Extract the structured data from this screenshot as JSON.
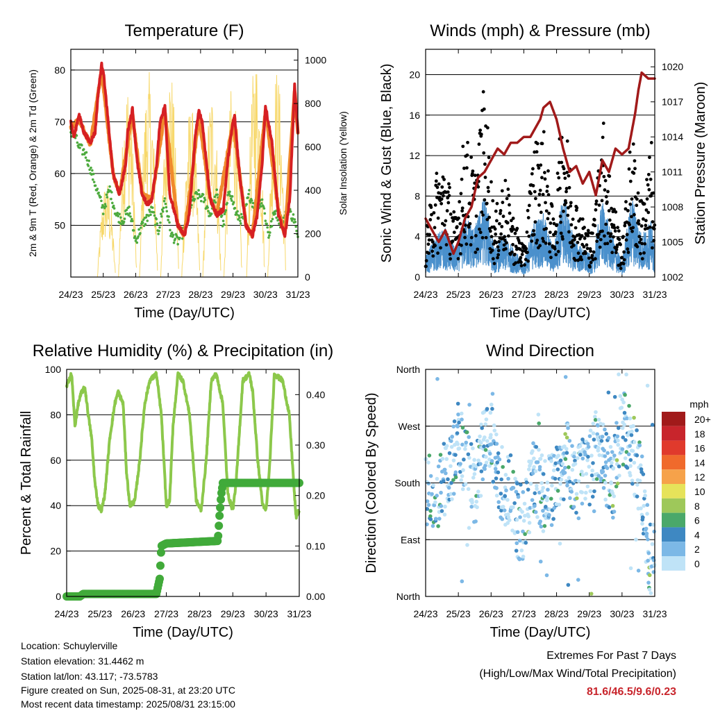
{
  "x_ticks": [
    "24/23",
    "25/23",
    "26/23",
    "27/23",
    "28/23",
    "29/23",
    "30/23",
    "31/23"
  ],
  "chart_data": [
    {
      "type": "line",
      "title": "Temperature (F)",
      "xlabel": "Time (Day/UTC)",
      "ylabel": "2m & 9m T (Red, Orange) & 2m Td (Green)",
      "ylabel_right": "Solar Insolation (Yellow)",
      "ylim": [
        40,
        84
      ],
      "yticks": [
        50,
        60,
        70,
        80
      ],
      "ylim_right": [
        0,
        1050
      ],
      "yticks_right": [
        0,
        200,
        400,
        600,
        800,
        1000
      ],
      "gridlines": [
        50,
        60,
        70,
        80
      ],
      "colors": {
        "temp_2m": "#d62023",
        "temp_9m": "#f08a2c",
        "dewpoint": "#4daa3e",
        "solar": "#f7d86b"
      },
      "series": [
        {
          "key": "temp_2m",
          "days": [
            0,
            0.1,
            0.25,
            0.4,
            0.6,
            0.75,
            0.85,
            0.95,
            1,
            1.15,
            1.3,
            1.5,
            1.7,
            1.75,
            1.9,
            2.05,
            2.2,
            2.35,
            2.5,
            2.65,
            2.75,
            2.9,
            3.05,
            3.3,
            3.5,
            3.65,
            3.75,
            3.85,
            3.95,
            4.05,
            4.3,
            4.5,
            4.7,
            4.85,
            5,
            5.05,
            5.2,
            5.4,
            5.6,
            5.75,
            5.9,
            6,
            6.2,
            6.4,
            6.6,
            6.75,
            6.9,
            7
          ],
          "values": [
            70,
            67,
            71.5,
            68,
            66,
            68,
            76,
            81,
            80,
            70,
            60,
            56,
            62,
            68,
            72.5,
            62,
            56,
            54,
            55,
            62,
            70,
            73,
            56,
            50,
            48,
            52,
            60,
            68,
            72,
            70,
            55,
            52,
            53,
            63,
            70,
            71,
            60,
            50,
            48,
            52,
            62,
            73,
            66,
            52,
            48,
            55,
            77,
            68
          ]
        },
        {
          "key": "temp_9m",
          "days": [
            0,
            0.25,
            0.6,
            0.95,
            1.3,
            1.5,
            1.9,
            2.2,
            2.5,
            2.9,
            3.3,
            3.5,
            3.95,
            4.3,
            4.5,
            5,
            5.4,
            5.6,
            6,
            6.4,
            6.6,
            6.9,
            7
          ],
          "values": [
            69,
            70.5,
            65.5,
            80,
            60,
            56,
            71.5,
            56,
            55,
            72,
            50,
            48,
            71,
            55,
            52,
            70,
            50,
            48,
            72,
            53,
            48,
            76,
            68
          ]
        },
        {
          "key": "dewpoint",
          "days": [
            0,
            0.15,
            0.25,
            0.45,
            0.6,
            0.75,
            0.9,
            1.0,
            1.2,
            1.4,
            1.6,
            1.8,
            2,
            2.2,
            2.5,
            2.7,
            2.9,
            3.1,
            3.3,
            3.5,
            3.7,
            3.9,
            4.1,
            4.3,
            4.5,
            4.7,
            4.9,
            5.1,
            5.3,
            5.5,
            5.7,
            5.9,
            6.1,
            6.3,
            6.5,
            6.7,
            6.9,
            7
          ],
          "values": [
            68,
            67,
            65,
            64,
            61,
            58,
            55,
            53,
            57,
            52,
            51,
            53,
            47,
            50,
            53,
            49,
            55,
            48,
            47,
            49,
            54,
            56,
            55,
            52,
            56,
            50,
            57,
            52,
            51,
            56,
            53,
            55,
            48,
            53,
            50,
            53,
            51,
            47
          ]
        },
        {
          "key": "solar",
          "type": "area",
          "note": "daily insolation peaks",
          "peak_days": [
            1.1,
            1.75,
            2.4,
            3.05,
            3.7,
            4.35,
            5.0,
            5.7,
            6.35
          ],
          "peak_values": [
            450,
            920,
            950,
            1000,
            800,
            880,
            920,
            1040,
            970
          ]
        }
      ]
    },
    {
      "type": "scatter",
      "title": "Winds (mph) & Pressure (mb)",
      "xlabel": "Time (Day/UTC)",
      "ylabel": "Sonic Wind & Gust (Blue, Black)",
      "ylabel_right": "Station Pressure (Maroon)",
      "ylim": [
        0,
        22.5
      ],
      "yticks": [
        0,
        4,
        8,
        12,
        16,
        20
      ],
      "ylim_right": [
        1002,
        1021.5
      ],
      "yticks_right": [
        1002,
        1005,
        1008,
        1011,
        1014,
        1017,
        1020
      ],
      "gridlines": [
        4,
        8,
        12,
        16,
        20
      ],
      "colors": {
        "wind": "#4a90cc",
        "gust": "#000000",
        "pressure": "#a11a1a"
      },
      "series": [
        {
          "key": "wind_profile",
          "days": [
            0,
            0.3,
            0.6,
            0.9,
            1.2,
            1.5,
            1.8,
            2.1,
            2.4,
            2.7,
            3.0,
            3.3,
            3.6,
            3.9,
            4.2,
            4.5,
            4.8,
            5.1,
            5.4,
            5.7,
            6.0,
            6.3,
            6.6,
            6.9,
            7
          ],
          "values": [
            1.5,
            3,
            3.5,
            2,
            4.5,
            3.5,
            6,
            2,
            3,
            2,
            1,
            4,
            4.5,
            2,
            6,
            3,
            2,
            1.5,
            5.5,
            3,
            1,
            6,
            3,
            4,
            2
          ]
        },
        {
          "key": "gust_profile",
          "days": [
            0,
            0.3,
            0.6,
            0.9,
            1.2,
            1.5,
            1.8,
            2.1,
            2.4,
            2.7,
            3.0,
            3.3,
            3.6,
            3.9,
            4.2,
            4.5,
            4.8,
            5.1,
            5.4,
            5.7,
            6.0,
            6.3,
            6.6,
            6.9,
            7
          ],
          "values": [
            3,
            7,
            8,
            4,
            10,
            7,
            13,
            4,
            7,
            4,
            2,
            9,
            10,
            4,
            12,
            6,
            4,
            3,
            11,
            6,
            2,
            10,
            5,
            9,
            4
          ]
        },
        {
          "key": "pressure",
          "days": [
            0,
            0.2,
            0.4,
            0.6,
            0.85,
            1.0,
            1.2,
            1.4,
            1.6,
            1.8,
            2.0,
            2.2,
            2.4,
            2.6,
            2.8,
            3.0,
            3.2,
            3.4,
            3.5,
            3.6,
            3.8,
            4.0,
            4.2,
            4.4,
            4.6,
            4.8,
            5.0,
            5.2,
            5.4,
            5.6,
            5.8,
            6.0,
            6.2,
            6.4,
            6.5,
            6.6,
            6.8,
            7
          ],
          "values": [
            1007,
            1006,
            1005,
            1006,
            1004,
            1005,
            1007,
            1008,
            1010.5,
            1011,
            1012,
            1013,
            1012.5,
            1013.5,
            1013.5,
            1014,
            1014,
            1015,
            1015.5,
            1016.5,
            1017,
            1015.5,
            1013,
            1011,
            1011.5,
            1010,
            1011,
            1009,
            1012,
            1011,
            1013,
            1012.5,
            1013,
            1016,
            1018,
            1019.5,
            1019,
            1019
          ]
        }
      ]
    },
    {
      "type": "line",
      "title": "Relative Humidity (%) & Precipitation (in)",
      "xlabel": "Time (Day/UTC)",
      "ylabel": "Percent & Total Rainfall",
      "ylim": [
        0,
        100
      ],
      "yticks": [
        0,
        20,
        40,
        60,
        80,
        100
      ],
      "ylim_right": [
        0,
        0.45
      ],
      "yticks_right": [
        "0.00",
        "0.10",
        "0.20",
        "0.30",
        "0.40"
      ],
      "gridlines": [
        20,
        40,
        60,
        80
      ],
      "colors": {
        "rh": "#8cc84b",
        "precip": "#41aa3a"
      },
      "series": [
        {
          "key": "rh",
          "days": [
            0,
            0.05,
            0.15,
            0.25,
            0.35,
            0.45,
            0.55,
            0.65,
            0.75,
            0.85,
            0.95,
            1.05,
            1.15,
            1.3,
            1.45,
            1.55,
            1.7,
            1.8,
            1.9,
            2.05,
            2.2,
            2.35,
            2.5,
            2.7,
            2.85,
            3.0,
            3.1,
            3.2,
            3.35,
            3.5,
            3.7,
            3.9,
            4.05,
            4.2,
            4.35,
            4.5,
            4.7,
            4.85,
            5.0,
            5.1,
            5.3,
            5.5,
            5.6,
            5.75,
            5.9,
            6.0,
            6.1,
            6.25,
            6.5,
            6.7,
            6.9,
            7
          ],
          "values": [
            92,
            95,
            98,
            75,
            85,
            90,
            92,
            80,
            70,
            50,
            40,
            38,
            45,
            70,
            85,
            90,
            85,
            55,
            40,
            42,
            60,
            85,
            95,
            98,
            80,
            40,
            42,
            75,
            98,
            95,
            80,
            42,
            38,
            60,
            95,
            98,
            85,
            45,
            38,
            50,
            95,
            98,
            90,
            60,
            40,
            38,
            55,
            98,
            95,
            80,
            35,
            38
          ]
        },
        {
          "key": "precip",
          "days": [
            0,
            0.4,
            0.5,
            2.7,
            2.75,
            2.8,
            2.85,
            3.0,
            4.55,
            4.6,
            4.65,
            4.7,
            7
          ],
          "values": [
            0,
            0,
            0.005,
            0.005,
            0.02,
            0.035,
            0.1,
            0.105,
            0.11,
            0.16,
            0.2,
            0.225,
            0.225
          ]
        }
      ]
    },
    {
      "type": "scatter",
      "title": "Wind Direction",
      "xlabel": "Time (Day/UTC)",
      "ylabel": "Direction (Colored By Speed)",
      "ylim": [
        0,
        360
      ],
      "yticks": [
        "North",
        "East",
        "South",
        "West",
        "North"
      ],
      "gridlines": [
        90,
        180,
        270
      ],
      "legend": {
        "title": "mph",
        "placement": "right",
        "labels": [
          "20+",
          "18",
          "16",
          "14",
          "12",
          "10",
          "8",
          "6",
          "4",
          "2",
          "0"
        ],
        "colors": [
          "#a11a1a",
          "#c8252c",
          "#e03a2c",
          "#f06a2c",
          "#f6a24a",
          "#e6e35a",
          "#9ec85a",
          "#4aa86a",
          "#3e88c2",
          "#7cb8e6",
          "#bfe3f7"
        ]
      },
      "series": [
        {
          "key": "direction_center",
          "days": [
            0,
            0.4,
            0.8,
            1.0,
            1.5,
            1.9,
            2.3,
            2.6,
            2.9,
            3.3,
            3.6,
            4.0,
            4.3,
            4.6,
            5.0,
            5.3,
            5.7,
            6.0,
            6.3,
            6.6,
            6.9,
            7
          ],
          "values": [
            160,
            180,
            200,
            250,
            170,
            270,
            180,
            170,
            100,
            190,
            160,
            180,
            220,
            180,
            200,
            250,
            170,
            280,
            240,
            170,
            40,
            80
          ]
        }
      ]
    }
  ],
  "info": {
    "location": "Location: Schuylerville",
    "elevation": "Station elevation: 31.4462 m",
    "latlon": "Station lat/lon: 43.117; -73.5783",
    "created": "Figure created on Sun, 2025-08-31, at 23:20 UTC",
    "recent": "Most recent data timestamp: 2025/08/31 23:15:00"
  },
  "extremes": {
    "title": "Extremes For Past 7 Days",
    "subtitle": "(High/Low/Max Wind/Total Precipitation)",
    "values": "81.6/46.5/9.6/0.23"
  }
}
